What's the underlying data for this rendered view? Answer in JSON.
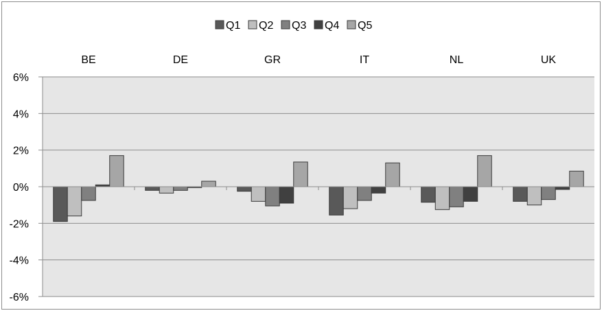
{
  "chart_data": {
    "type": "bar",
    "categories": [
      "BE",
      "DE",
      "GR",
      "IT",
      "NL",
      "UK"
    ],
    "category_axis_position": "top",
    "series": [
      {
        "name": "Q1",
        "values": [
          -1.9,
          -0.2,
          -0.25,
          -1.55,
          -0.85,
          -0.8
        ],
        "color": "#595959"
      },
      {
        "name": "Q2",
        "values": [
          -1.6,
          -0.35,
          -0.8,
          -1.2,
          -1.25,
          -1.0
        ],
        "color": "#bfbfbf"
      },
      {
        "name": "Q3",
        "values": [
          -0.75,
          -0.2,
          -1.05,
          -0.75,
          -1.1,
          -0.7
        ],
        "color": "#808080"
      },
      {
        "name": "Q4",
        "values": [
          0.1,
          -0.05,
          -0.9,
          -0.35,
          -0.8,
          -0.15
        ],
        "color": "#404040"
      },
      {
        "name": "Q5",
        "values": [
          1.7,
          0.3,
          1.35,
          1.3,
          1.7,
          0.85
        ],
        "color": "#a6a6a6"
      }
    ],
    "y_ticks": [
      "6%",
      "4%",
      "2%",
      "0%",
      "-2%",
      "-4%",
      "-6%"
    ],
    "ylim": [
      -6,
      6
    ],
    "y_unit": "%",
    "grid": true,
    "legend": "top",
    "plot_background": "#e6e6e6",
    "title": "",
    "xlabel": "",
    "ylabel": ""
  }
}
